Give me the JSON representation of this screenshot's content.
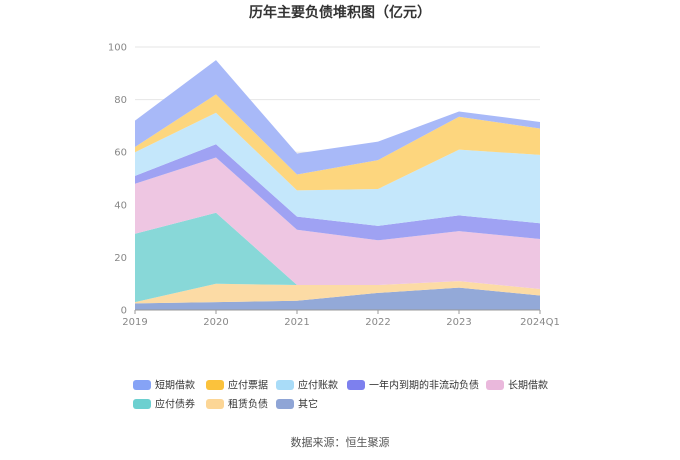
{
  "chart_data": {
    "type": "area",
    "stacked": true,
    "title": "历年主要负债堆积图（亿元）",
    "x": [
      "2019",
      "2020",
      "2021",
      "2022",
      "2023",
      "2024Q1"
    ],
    "ylim": [
      0,
      100
    ],
    "yticks": [
      0,
      20,
      40,
      60,
      80,
      100
    ],
    "grid": true,
    "legend_position": "bottom",
    "series": [
      {
        "name": "其它",
        "color": "#93a9d8",
        "values": [
          2.5,
          3.0,
          3.5,
          6.5,
          8.5,
          5.5
        ]
      },
      {
        "name": "租赁负债",
        "color": "#fcdba5",
        "values": [
          0.5,
          7.0,
          6.0,
          3.0,
          2.5,
          2.5
        ]
      },
      {
        "name": "应付债券",
        "color": "#88d8d8",
        "values": [
          26.0,
          27.0,
          0.0,
          0.0,
          0.0,
          0.0
        ]
      },
      {
        "name": "长期借款",
        "color": "#eec6e2",
        "values": [
          19.0,
          21.0,
          21.0,
          17.0,
          19.0,
          19.0
        ]
      },
      {
        "name": "一年内到期的非流动负债",
        "color": "#9fa2f3",
        "values": [
          3.0,
          5.0,
          5.0,
          5.5,
          6.0,
          6.0
        ]
      },
      {
        "name": "应付账款",
        "color": "#c4e7fb",
        "values": [
          9.0,
          12.0,
          10.0,
          14.0,
          25.0,
          26.0
        ]
      },
      {
        "name": "应付票据",
        "color": "#fdd67e",
        "values": [
          2.0,
          7.0,
          6.0,
          11.0,
          12.5,
          10.0
        ]
      },
      {
        "name": "短期借款",
        "color": "#a8b9f8",
        "values": [
          10.0,
          13.0,
          8.0,
          7.0,
          2.0,
          2.5
        ]
      }
    ],
    "legend_order": [
      "短期借款",
      "应付票据",
      "应付账款",
      "一年内到期的非流动负债",
      "长期借款",
      "应付债券",
      "租赁负债",
      "其它"
    ],
    "legend_colors": {
      "短期借款": "#86a3f6",
      "应付票据": "#fbc23c",
      "应付账款": "#a9dcf8",
      "一年内到期的非流动负债": "#7d80ee",
      "长期借款": "#eab8dc",
      "应付债券": "#6cd0d0",
      "租赁负债": "#fcd696",
      "其它": "#8fa5d6"
    }
  },
  "source": "数据来源：恒生聚源"
}
